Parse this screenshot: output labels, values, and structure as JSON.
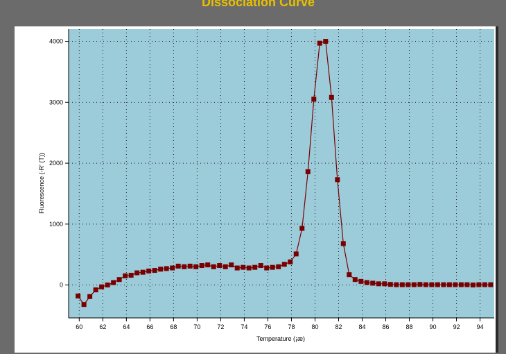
{
  "chart_data": {
    "type": "line",
    "title": "Dissociation Curve",
    "xlabel": "Temperature (¡æ)",
    "ylabel": "Fluorescence (-R' (T))",
    "xlim": [
      59.1,
      95.2
    ],
    "ylim": [
      -540,
      4200
    ],
    "x_ticks": [
      60,
      62,
      64,
      66,
      68,
      70,
      72,
      74,
      76,
      78,
      80,
      82,
      84,
      86,
      88,
      90,
      92,
      94
    ],
    "y_ticks": [
      0,
      1000,
      2000,
      3000,
      4000
    ],
    "grid": true,
    "series": [
      {
        "color": "#7a0000",
        "marker": "square",
        "x": [
          59.9,
          60.4,
          60.9,
          61.4,
          61.9,
          62.4,
          62.9,
          63.4,
          63.9,
          64.4,
          64.9,
          65.4,
          65.9,
          66.4,
          66.9,
          67.4,
          67.9,
          68.4,
          68.9,
          69.4,
          69.9,
          70.4,
          70.9,
          71.4,
          71.9,
          72.4,
          72.9,
          73.4,
          73.9,
          74.4,
          74.9,
          75.4,
          75.9,
          76.4,
          76.9,
          77.4,
          77.9,
          78.4,
          78.9,
          79.4,
          79.9,
          80.4,
          80.9,
          81.4,
          81.9,
          82.4,
          82.9,
          83.4,
          83.9,
          84.4,
          84.9,
          85.4,
          85.9,
          86.4,
          86.9,
          87.4,
          87.9,
          88.4,
          88.9,
          89.4,
          89.9,
          90.4,
          90.9,
          91.4,
          91.9,
          92.4,
          92.9,
          93.4,
          93.9,
          94.4,
          94.9
        ],
        "y": [
          -180,
          -320,
          -190,
          -80,
          -30,
          0,
          40,
          90,
          150,
          160,
          200,
          210,
          230,
          240,
          260,
          270,
          280,
          310,
          300,
          310,
          300,
          320,
          330,
          300,
          320,
          300,
          330,
          280,
          290,
          280,
          290,
          320,
          280,
          290,
          300,
          340,
          380,
          510,
          930,
          1860,
          3050,
          3970,
          4000,
          3080,
          1730,
          680,
          170,
          90,
          60,
          40,
          30,
          20,
          20,
          10,
          5,
          5,
          5,
          5,
          10,
          5,
          5,
          5,
          5,
          5,
          5,
          5,
          5,
          0,
          5,
          5,
          5
        ]
      }
    ]
  }
}
